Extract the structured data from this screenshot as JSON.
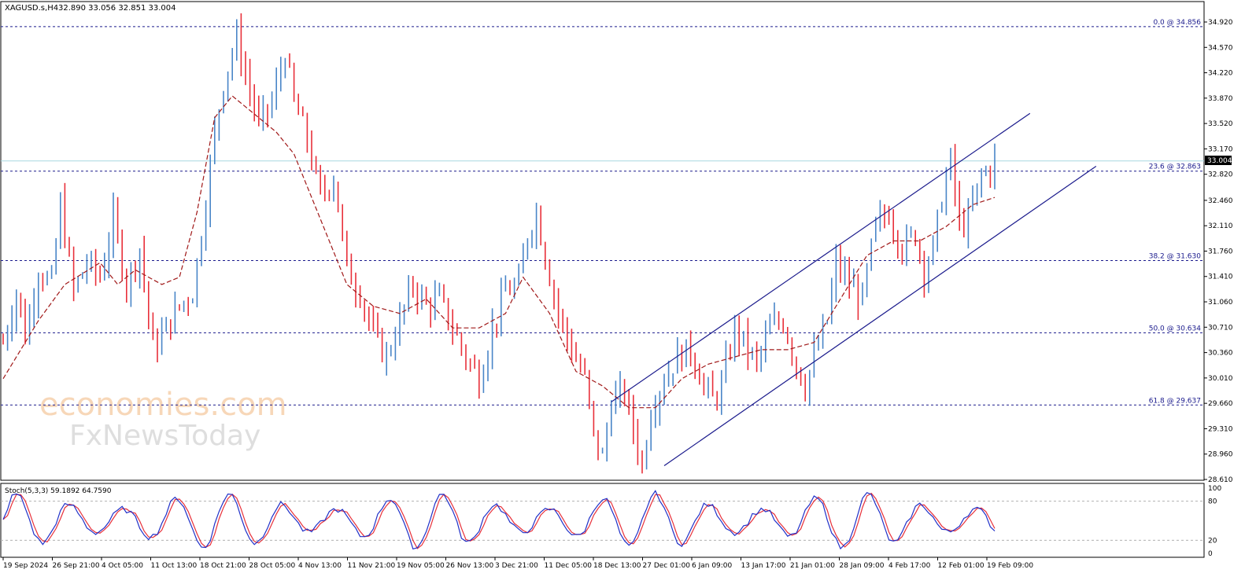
{
  "header": {
    "symbol": "XAGUSD.s,H4",
    "ohlc": "32.890 33.056 32.851 33.004"
  },
  "watermark": {
    "line1": "economies.com",
    "line2": "FxNewsToday"
  },
  "price_tag": "33.004",
  "colors": {
    "bull": "#4a86c8",
    "bear": "#e8303a",
    "ma": "#a01818",
    "fib": "#1a1a8c",
    "channel": "#1a1a8c",
    "stoch_main": "#2030c8",
    "stoch_signal": "#e8303a"
  },
  "chart_data": [
    {
      "type": "line",
      "name": "price",
      "y_ticks": [
        "34.920",
        "34.570",
        "34.220",
        "33.870",
        "33.520",
        "33.170",
        "32.820",
        "32.460",
        "32.110",
        "31.760",
        "31.410",
        "31.060",
        "30.710",
        "30.360",
        "30.010",
        "29.660",
        "29.310",
        "28.960",
        "28.610"
      ],
      "ylim": [
        28.55,
        35.1
      ],
      "x_ticks": [
        "19 Sep 2024",
        "26 Sep 21:00",
        "4 Oct 05:00",
        "11 Oct 13:00",
        "18 Oct 21:00",
        "28 Oct 05:00",
        "4 Nov 13:00",
        "11 Nov 21:00",
        "19 Nov 05:00",
        "26 Nov 13:00",
        "3 Dec 21:00",
        "11 Dec 05:00",
        "18 Dec 13:00",
        "27 Dec 01:00",
        "6 Jan 09:00",
        "13 Jan 17:00",
        "21 Jan 01:00",
        "28 Jan 09:00",
        "4 Feb 17:00",
        "12 Feb 01:00",
        "19 Feb 09:00"
      ],
      "close_path": [
        [
          0,
          30.5
        ],
        [
          3,
          31.2
        ],
        [
          5,
          30.6
        ],
        [
          8,
          31.5
        ],
        [
          11,
          31.3
        ],
        [
          13,
          32.4
        ],
        [
          16,
          31.2
        ],
        [
          19,
          31.6
        ],
        [
          22,
          31.4
        ],
        [
          25,
          32.2
        ],
        [
          28,
          31.3
        ],
        [
          31,
          31.8
        ],
        [
          34,
          30.4
        ],
        [
          37,
          30.7
        ],
        [
          40,
          31.0
        ],
        [
          43,
          31.2
        ],
        [
          45,
          32.0
        ],
        [
          48,
          33.4
        ],
        [
          50,
          34.1
        ],
        [
          53,
          34.7
        ],
        [
          55,
          34.2
        ],
        [
          58,
          33.5
        ],
        [
          61,
          33.8
        ],
        [
          64,
          34.5
        ],
        [
          66,
          33.8
        ],
        [
          69,
          33.3
        ],
        [
          72,
          32.5
        ],
        [
          75,
          32.8
        ],
        [
          78,
          31.5
        ],
        [
          81,
          31.2
        ],
        [
          84,
          30.6
        ],
        [
          87,
          30.3
        ],
        [
          90,
          30.8
        ],
        [
          93,
          31.3
        ],
        [
          96,
          31.0
        ],
        [
          99,
          31.1
        ],
        [
          102,
          30.7
        ],
        [
          105,
          30.3
        ],
        [
          108,
          30.0
        ],
        [
          111,
          30.7
        ],
        [
          114,
          31.2
        ],
        [
          117,
          31.3
        ],
        [
          119,
          32.0
        ],
        [
          121,
          32.3
        ],
        [
          123,
          31.7
        ],
        [
          126,
          30.9
        ],
        [
          129,
          30.4
        ],
        [
          132,
          30.0
        ],
        [
          134,
          29.2
        ],
        [
          136,
          28.9
        ],
        [
          138,
          29.7
        ],
        [
          141,
          29.8
        ],
        [
          143,
          29.3
        ],
        [
          145,
          28.8
        ],
        [
          147,
          29.6
        ],
        [
          150,
          30.0
        ],
        [
          153,
          30.3
        ],
        [
          156,
          30.4
        ],
        [
          159,
          29.9
        ],
        [
          161,
          29.7
        ],
        [
          163,
          29.9
        ],
        [
          166,
          30.7
        ],
        [
          168,
          30.5
        ],
        [
          171,
          30.2
        ],
        [
          174,
          30.7
        ],
        [
          177,
          30.8
        ],
        [
          180,
          30.2
        ],
        [
          182,
          29.9
        ],
        [
          184,
          30.3
        ],
        [
          187,
          30.8
        ],
        [
          189,
          31.6
        ],
        [
          192,
          31.3
        ],
        [
          195,
          31.1
        ],
        [
          198,
          32.1
        ],
        [
          201,
          32.3
        ],
        [
          204,
          31.8
        ],
        [
          207,
          32.0
        ],
        [
          209,
          31.5
        ],
        [
          211,
          31.8
        ],
        [
          213,
          32.5
        ],
        [
          215,
          33.0
        ],
        [
          217,
          32.1
        ],
        [
          219,
          32.2
        ],
        [
          222,
          32.8
        ],
        [
          224,
          32.9
        ],
        [
          225,
          33.0
        ]
      ],
      "overlays": {
        "fibonacci": [
          {
            "label": "0.0 @ 34.856",
            "value": 34.856
          },
          {
            "label": "23.6 @ 32.863",
            "value": 32.863
          },
          {
            "label": "38.2 @ 31.630",
            "value": 31.63
          },
          {
            "label": "50.0 @ 30.634",
            "value": 30.634
          },
          {
            "label": "61.8 @ 29.637",
            "value": 29.637
          }
        ],
        "current_price": 33.004,
        "moving_average": [
          [
            0,
            30.0
          ],
          [
            8,
            30.8
          ],
          [
            14,
            31.3
          ],
          [
            22,
            31.6
          ],
          [
            26,
            31.3
          ],
          [
            30,
            31.5
          ],
          [
            36,
            31.3
          ],
          [
            40,
            31.4
          ],
          [
            44,
            32.3
          ],
          [
            48,
            33.6
          ],
          [
            52,
            33.9
          ],
          [
            58,
            33.6
          ],
          [
            62,
            33.4
          ],
          [
            66,
            33.1
          ],
          [
            72,
            32.2
          ],
          [
            78,
            31.3
          ],
          [
            84,
            31.0
          ],
          [
            90,
            30.9
          ],
          [
            96,
            31.1
          ],
          [
            102,
            30.7
          ],
          [
            108,
            30.7
          ],
          [
            114,
            30.9
          ],
          [
            118,
            31.4
          ],
          [
            124,
            30.9
          ],
          [
            130,
            30.1
          ],
          [
            136,
            29.9
          ],
          [
            142,
            29.6
          ],
          [
            148,
            29.6
          ],
          [
            154,
            30.0
          ],
          [
            160,
            30.2
          ],
          [
            166,
            30.3
          ],
          [
            172,
            30.4
          ],
          [
            178,
            30.4
          ],
          [
            184,
            30.5
          ],
          [
            190,
            31.1
          ],
          [
            196,
            31.7
          ],
          [
            202,
            31.9
          ],
          [
            208,
            31.9
          ],
          [
            214,
            32.1
          ],
          [
            220,
            32.4
          ],
          [
            225,
            32.5
          ]
        ],
        "channel": {
          "upper": [
            [
              138,
              29.68
            ],
            [
              233,
              33.66
            ]
          ],
          "lower": [
            [
              150,
              28.8
            ],
            [
              248,
              32.93
            ]
          ]
        }
      }
    },
    {
      "type": "line",
      "name": "Stoch(5,3,3)",
      "label": "Stoch(5,3,3) 59.1892 64.7590",
      "y_ticks": [
        "100",
        "80",
        "20",
        "0"
      ],
      "ylim": [
        0,
        100
      ],
      "levels": [
        80,
        20
      ]
    }
  ]
}
